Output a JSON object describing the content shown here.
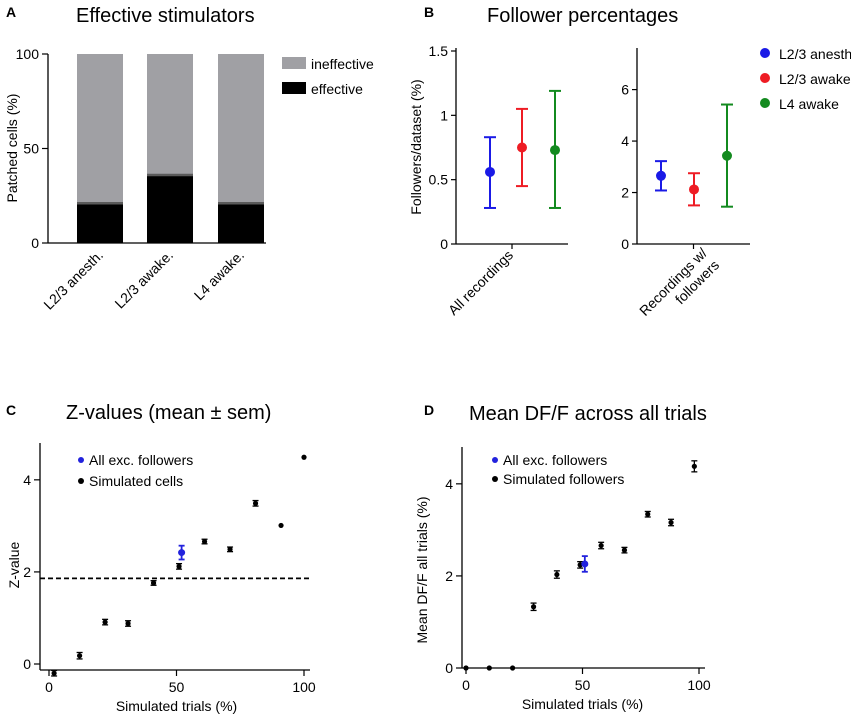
{
  "chart_data": [
    {
      "panel": "A",
      "type": "bar",
      "stacked": true,
      "title": "Effective stimulators",
      "ylabel": "Patched cells (%)",
      "ylim": [
        0,
        100
      ],
      "yticks": [
        0,
        50,
        100
      ],
      "categories": [
        "L2/3 anesth.",
        "L2/3 awake.",
        "L4 awake."
      ],
      "series": [
        {
          "name": "effective",
          "color": "#000000",
          "values": [
            21,
            36,
            21
          ]
        },
        {
          "name": "ineffective",
          "color": "#a0a0a4",
          "values": [
            79,
            64,
            79
          ]
        }
      ],
      "legend": [
        "ineffective",
        "effective"
      ]
    },
    {
      "panel": "B",
      "type": "scatter",
      "title": "Follower percentages",
      "subplots": [
        {
          "xlabel": "All recordings",
          "ylabel": "Followers/dataset (%)",
          "ylim": [
            0,
            1.5
          ],
          "yticks": [
            0,
            0.5,
            1,
            1.5
          ],
          "ytick_labels": [
            "0",
            "0.5",
            "1",
            "1.5"
          ],
          "points": [
            {
              "group": "L2/3 anesth.",
              "mean": 0.56,
              "low": 0.28,
              "high": 0.83
            },
            {
              "group": "L2/3 awake",
              "mean": 0.75,
              "low": 0.45,
              "high": 1.05
            },
            {
              "group": "L4 awake",
              "mean": 0.73,
              "low": 0.28,
              "high": 1.19
            }
          ]
        },
        {
          "xlabel": "Recordings w/ followers",
          "xlabel_lines": [
            "Recordings w/",
            "followers"
          ],
          "ylim": [
            0,
            7.5
          ],
          "yticks": [
            0,
            2,
            4,
            6
          ],
          "ytick_labels": [
            "0",
            "2",
            "4",
            "6"
          ],
          "points": [
            {
              "group": "L2/3 anesth.",
              "mean": 2.65,
              "low": 2.08,
              "high": 3.22
            },
            {
              "group": "L2/3 awake",
              "mean": 2.12,
              "low": 1.5,
              "high": 2.75
            },
            {
              "group": "L4 awake",
              "mean": 3.43,
              "low": 1.45,
              "high": 5.42
            }
          ]
        }
      ],
      "legend": [
        {
          "name": "L2/3 anesth.",
          "color": "#1a1ae6"
        },
        {
          "name": "L2/3 awake",
          "color": "#ee1c24"
        },
        {
          "name": "L4 awake",
          "color": "#138a1f"
        }
      ]
    },
    {
      "panel": "C",
      "type": "scatter",
      "title": "Z-values  (mean ± sem)",
      "xlabel": "Simulated trials (%)",
      "ylabel": "Z-value",
      "xlim": [
        0,
        100
      ],
      "ylim": [
        0,
        4.8
      ],
      "xticks": [
        0,
        50,
        100
      ],
      "yticks": [
        0,
        2,
        4
      ],
      "threshold": 1.86,
      "series": [
        {
          "name": "All exc. followers",
          "color": "#2222dd",
          "points": [
            {
              "x": 52,
              "y": 2.42,
              "err": 0.15
            }
          ]
        },
        {
          "name": "Simulated cells",
          "color": "#000000",
          "points": [
            {
              "x": 2,
              "y": -0.2,
              "err": 0.06
            },
            {
              "x": 12,
              "y": 0.18,
              "err": 0.07
            },
            {
              "x": 22,
              "y": 0.91,
              "err": 0.06
            },
            {
              "x": 31,
              "y": 0.88,
              "err": 0.06
            },
            {
              "x": 41,
              "y": 1.76,
              "err": 0.05
            },
            {
              "x": 51,
              "y": 2.12,
              "err": 0.06
            },
            {
              "x": 61,
              "y": 2.66,
              "err": 0.05
            },
            {
              "x": 71,
              "y": 2.49,
              "err": 0.05
            },
            {
              "x": 81,
              "y": 3.49,
              "err": 0.06
            },
            {
              "x": 91,
              "y": 3.01,
              "err": 0.0
            },
            {
              "x": 100,
              "y": 4.49,
              "err": 0.0
            }
          ]
        }
      ]
    },
    {
      "panel": "D",
      "type": "scatter",
      "title": "Mean DF/F across all trials",
      "xlabel": "Simulated trials (%)",
      "ylabel": "Mean DF/F  all trials (%)",
      "xlim": [
        0,
        100
      ],
      "ylim": [
        0,
        4.8
      ],
      "xticks": [
        0,
        50,
        100
      ],
      "yticks": [
        0,
        2,
        4
      ],
      "series": [
        {
          "name": "All exc. followers",
          "color": "#2222dd",
          "points": [
            {
              "x": 51,
              "y": 2.26,
              "err": 0.17
            }
          ]
        },
        {
          "name": "Simulated followers",
          "color": "#000000",
          "points": [
            {
              "x": 0,
              "y": 0.0,
              "err": 0.0
            },
            {
              "x": 10,
              "y": 0.0,
              "err": 0.0
            },
            {
              "x": 20,
              "y": 0.0,
              "err": 0.0
            },
            {
              "x": 29,
              "y": 1.33,
              "err": 0.08
            },
            {
              "x": 39,
              "y": 2.03,
              "err": 0.08
            },
            {
              "x": 49,
              "y": 2.24,
              "err": 0.07
            },
            {
              "x": 58,
              "y": 2.66,
              "err": 0.07
            },
            {
              "x": 68,
              "y": 2.56,
              "err": 0.06
            },
            {
              "x": 78,
              "y": 3.34,
              "err": 0.06
            },
            {
              "x": 88,
              "y": 3.16,
              "err": 0.07
            },
            {
              "x": 98,
              "y": 4.38,
              "err": 0.12
            }
          ]
        }
      ]
    }
  ]
}
